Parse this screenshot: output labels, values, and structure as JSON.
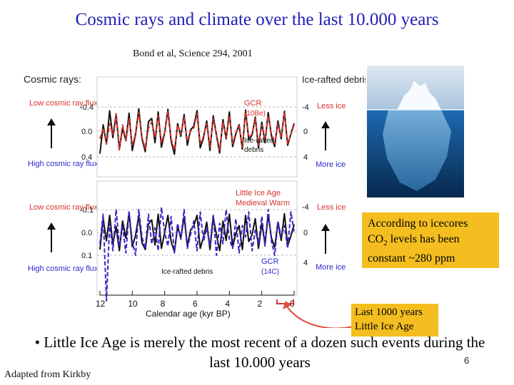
{
  "slide": {
    "title": "Cosmic rays and climate over the last 10.000 years",
    "source": "Bond et al, Science 294, 2001",
    "bullet": "• Little Ice Age is merely the most recent of a dozen such events during the last 10.000 years",
    "page_number": "6",
    "credit": "Adapted from Kirkby",
    "note_text": [
      "According to icecores",
      "levels has been",
      "constant ~280 ppm"
    ],
    "note_co2": "CO",
    "note_co2_sub": "2",
    "note2_lines": [
      "Last 1000 years",
      "Little Ice Age"
    ]
  },
  "colors": {
    "title": "#1f1fb3",
    "gcr_top": "#d8312b",
    "gcr_bottom": "#3e22c8",
    "ice": "#111111",
    "label_red": "#d8312b",
    "label_blue": "#2a2ad0",
    "note_bg": "#f4be20",
    "arrow": "#e14a3c"
  },
  "chart_data": {
    "type": "line",
    "x_axis": {
      "label": "Calendar age (kyr BP)",
      "range": [
        12,
        0
      ],
      "ticks": [
        "12",
        "10",
        "8",
        "6",
        "4",
        "2",
        "0"
      ]
    },
    "left_title": "Cosmic rays:",
    "right_title": "Ice-rafted debris (%):",
    "left_labels": {
      "low": "Low cosmic ray flux",
      "high": "High cosmic ray flux"
    },
    "right_labels": {
      "less": "Less ice",
      "more": "More ice"
    },
    "panels": [
      {
        "left_ticks": [
          "-0.4",
          "0.0",
          "0.4"
        ],
        "right_ticks": [
          "-4",
          "0",
          "4"
        ],
        "annotations": [
          "GCR",
          "(10Be)",
          "Ice-rafted",
          "debris"
        ],
        "x_range": [
          12,
          0
        ],
        "series": [
          {
            "name": "GCR (10Be)",
            "x": [
              12.0,
              11.8,
              11.6,
              11.4,
              11.2,
              11.0,
              10.8,
              10.6,
              10.4,
              10.2,
              10.0,
              9.8,
              9.6,
              9.4,
              9.2,
              9.0,
              8.8,
              8.6,
              8.4,
              8.2,
              8.0,
              7.8,
              7.6,
              7.4,
              7.2,
              7.0,
              6.8,
              6.6,
              6.4,
              6.2,
              6.0,
              5.8,
              5.6,
              5.4,
              5.2,
              5.0,
              4.8,
              4.6,
              4.4,
              4.2,
              4.0,
              3.8,
              3.6,
              3.4,
              3.2,
              3.0,
              2.8,
              2.6,
              2.4,
              2.2,
              2.0,
              1.8,
              1.6,
              1.4,
              1.2,
              1.0,
              0.8,
              0.6,
              0.4,
              0.2,
              0.0
            ],
            "y": [
              0.12,
              -0.05,
              0.2,
              -0.12,
              0.05,
              -0.28,
              0.3,
              -0.1,
              0.15,
              -0.2,
              0.22,
              0.05,
              -0.3,
              0.1,
              0.28,
              -0.05,
              -0.15,
              0.1,
              -0.25,
              0.18,
              0.02,
              -0.32,
              0.12,
              0.3,
              -0.1,
              0.05,
              -0.22,
              0.16,
              0.0,
              -0.05,
              -0.28,
              0.2,
              0.08,
              -0.12,
              0.25,
              -0.2,
              0.05,
              0.3,
              -0.15,
              0.1,
              -0.25,
              0.2,
              0.02,
              -0.08,
              0.25,
              -0.3,
              0.1,
              0.05,
              -0.2,
              0.22,
              -0.1,
              0.15,
              -0.25,
              0.05,
              0.2,
              -0.12,
              0.1,
              -0.3,
              0.2,
              0.05,
              -0.1
            ]
          },
          {
            "name": "Ice-rafted debris",
            "x": [
              12.0,
              11.8,
              11.6,
              11.4,
              11.2,
              11.0,
              10.8,
              10.6,
              10.4,
              10.2,
              10.0,
              9.8,
              9.6,
              9.4,
              9.2,
              9.0,
              8.8,
              8.6,
              8.4,
              8.2,
              8.0,
              7.8,
              7.6,
              7.4,
              7.2,
              7.0,
              6.8,
              6.6,
              6.4,
              6.2,
              6.0,
              5.8,
              5.6,
              5.4,
              5.2,
              5.0,
              4.8,
              4.6,
              4.4,
              4.2,
              4.0,
              3.8,
              3.6,
              3.4,
              3.2,
              3.0,
              2.8,
              2.6,
              2.4,
              2.2,
              2.0,
              1.8,
              1.6,
              1.4,
              1.2,
              1.0,
              0.8,
              0.6,
              0.4,
              0.2,
              0.0
            ],
            "y": [
              3.5,
              -1.0,
              2.0,
              -3.2,
              1.0,
              -2.5,
              2.8,
              -0.5,
              1.5,
              -2.8,
              3.0,
              0.5,
              -3.5,
              1.2,
              3.2,
              -1.5,
              -2.0,
              1.8,
              -3.0,
              2.5,
              0.2,
              -3.4,
              1.5,
              3.6,
              -1.2,
              0.8,
              -2.6,
              2.2,
              -0.2,
              -0.8,
              -3.2,
              2.6,
              1.0,
              -1.6,
              3.0,
              -2.4,
              0.6,
              3.4,
              -1.8,
              1.2,
              -3.0,
              2.4,
              0.4,
              -1.0,
              2.8,
              -3.3,
              1.4,
              0.6,
              -2.2,
              2.6,
              -1.4,
              1.8,
              -2.9,
              0.8,
              2.4,
              -1.6,
              1.2,
              -3.1,
              2.2,
              0.4,
              -1.2
            ]
          }
        ]
      },
      {
        "left_ticks": [
          "-0.1",
          "0.0",
          "0.1"
        ],
        "right_ticks": [
          "-4",
          "0",
          "4"
        ],
        "annotations": [
          "Little Ice Age",
          "Medieval Warm",
          "Ice-rafted debris",
          "GCR",
          "(14C)"
        ],
        "x_range": [
          12,
          0
        ],
        "series": [
          {
            "name": "GCR (14C)",
            "x": [
              12.0,
              11.8,
              11.6,
              11.4,
              11.2,
              11.0,
              10.8,
              10.6,
              10.4,
              10.2,
              10.0,
              9.8,
              9.6,
              9.4,
              9.2,
              9.0,
              8.8,
              8.6,
              8.4,
              8.2,
              8.0,
              7.8,
              7.6,
              7.4,
              7.2,
              7.0,
              6.8,
              6.6,
              6.4,
              6.2,
              6.0,
              5.8,
              5.6,
              5.4,
              5.2,
              5.0,
              4.8,
              4.6,
              4.4,
              4.2,
              4.0,
              3.8,
              3.6,
              3.4,
              3.2,
              3.0,
              2.8,
              2.6,
              2.4,
              2.2,
              2.0,
              1.8,
              1.6,
              1.4,
              1.2,
              1.0,
              0.8,
              0.6,
              0.4,
              0.2,
              0.0
            ],
            "y": [
              0.05,
              -0.08,
              0.3,
              -0.04,
              0.08,
              -0.1,
              0.06,
              -0.03,
              0.09,
              -0.09,
              0.04,
              0.1,
              -0.1,
              0.02,
              0.07,
              -0.08,
              0.05,
              -0.02,
              0.08,
              -0.11,
              0.0,
              0.06,
              -0.07,
              0.09,
              -0.04,
              0.03,
              -0.1,
              0.07,
              0.01,
              -0.05,
              0.08,
              -0.09,
              0.04,
              -0.02,
              0.06,
              -0.08,
              0.1,
              -0.04,
              0.05,
              -0.1,
              0.03,
              0.07,
              -0.06,
              0.09,
              -0.03,
              0.02,
              -0.09,
              0.08,
              -0.01,
              0.05,
              -0.07,
              0.06,
              -0.1,
              0.04,
              0.1,
              -0.05,
              0.02,
              -0.03,
              0.07,
              -0.09,
              0.0
            ]
          },
          {
            "name": "Ice-rafted debris",
            "x": [
              12.0,
              11.8,
              11.6,
              11.4,
              11.2,
              11.0,
              10.8,
              10.6,
              10.4,
              10.2,
              10.0,
              9.8,
              9.6,
              9.4,
              9.2,
              9.0,
              8.8,
              8.6,
              8.4,
              8.2,
              8.0,
              7.8,
              7.6,
              7.4,
              7.2,
              7.0,
              6.8,
              6.6,
              6.4,
              6.2,
              6.0,
              5.8,
              5.6,
              5.4,
              5.2,
              5.0,
              4.8,
              4.6,
              4.4,
              4.2,
              4.0,
              3.8,
              3.6,
              3.4,
              3.2,
              3.0,
              2.8,
              2.6,
              2.4,
              2.2,
              2.0,
              1.8,
              1.6,
              1.4,
              1.2,
              1.0,
              0.8,
              0.6,
              0.4,
              0.2,
              0.0
            ],
            "y": [
              3.0,
              -2.5,
              1.5,
              -3.0,
              2.0,
              -1.0,
              3.2,
              -2.0,
              1.0,
              -3.5,
              2.5,
              0.5,
              -3.0,
              1.8,
              3.0,
              -1.5,
              -2.2,
              2.2,
              -3.2,
              2.8,
              0.0,
              -3.0,
              1.6,
              3.4,
              -1.0,
              1.0,
              -2.8,
              2.4,
              -0.4,
              -1.2,
              -3.0,
              2.8,
              0.8,
              -1.8,
              3.0,
              -2.6,
              0.4,
              3.2,
              -2.0,
              1.4,
              -3.2,
              2.6,
              0.2,
              -1.2,
              3.0,
              -3.0,
              1.6,
              0.4,
              -2.4,
              2.8,
              -1.6,
              2.0,
              -3.1,
              1.0,
              2.6,
              -1.8,
              1.4,
              -3.3,
              2.4,
              0.6,
              -1.4
            ]
          }
        ]
      }
    ]
  }
}
